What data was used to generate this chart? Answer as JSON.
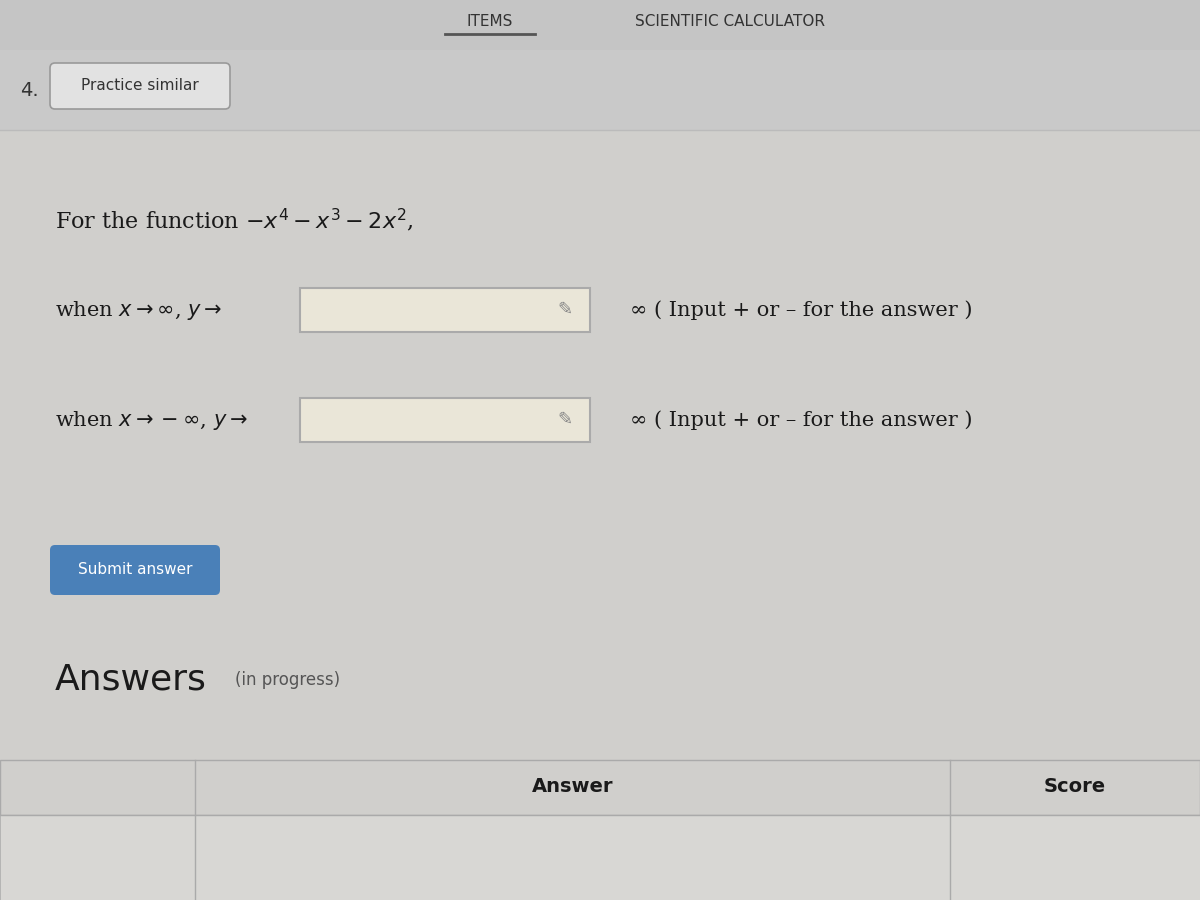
{
  "bg_color": "#c9c9c9",
  "top_section_color": "#c5c5c5",
  "content_bg": "#d0cfcc",
  "title_items": "ITEMS",
  "title_sci_calc": "SCIENTIFIC CALCULATOR",
  "number": "4.",
  "practice_btn_text": "Practice similar",
  "practice_btn_bg": "#e2e2e2",
  "practice_btn_border": "#999999",
  "input_box_color": "#eae6d8",
  "input_box_border": "#aaaaaa",
  "submit_btn_text": "Submit answer",
  "submit_btn_bg": "#4a80b8",
  "submit_btn_text_color": "#ffffff",
  "answers_title": "Answers",
  "answers_subtitle": "(in progress)",
  "answer_col": "Answer",
  "score_col": "Score",
  "table_border": "#aaaaaa",
  "table_header_bg": "#d0cfcc",
  "underline_color": "#555555",
  "right_text": "∞ ( Input + or – for the answer )",
  "function_line": "For the function $-x^4 - x^3 - 2x^2$,",
  "row1_label": "when $x \\rightarrow \\infty$, $y \\rightarrow$",
  "row2_label": "when $x \\rightarrow -\\infty$, $y \\rightarrow$"
}
